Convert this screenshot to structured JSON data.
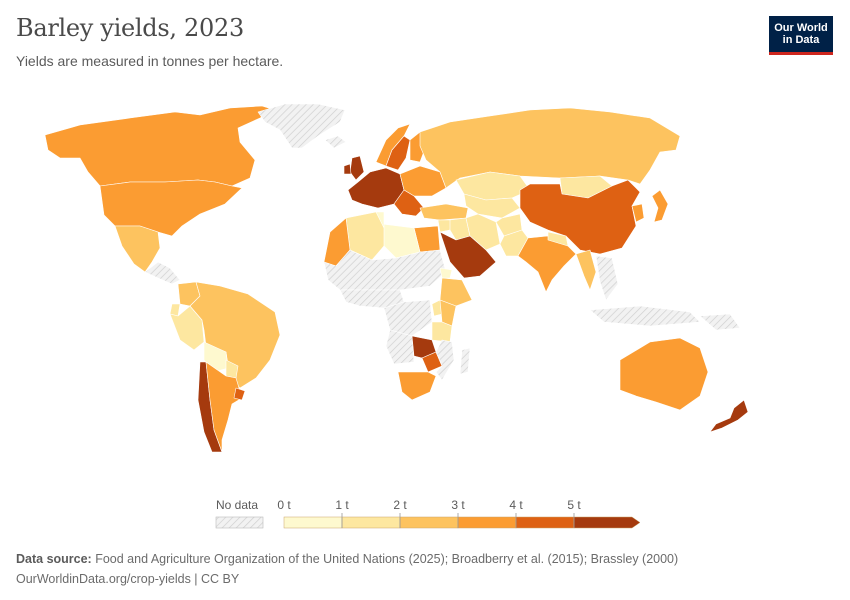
{
  "header": {
    "title": "Barley yields, 2023",
    "subtitle": "Yields are measured in tonnes per hectare."
  },
  "logo": {
    "line1": "Our World",
    "line2": "in Data"
  },
  "legend": {
    "no_data_label": "No data",
    "ticks": [
      "0 t",
      "1 t",
      "2 t",
      "3 t",
      "4 t",
      "5 t"
    ],
    "colors": [
      "#fef9cf",
      "#fde7a0",
      "#fdc35f",
      "#fb9c32",
      "#de6113",
      "#a53a0e"
    ],
    "no_data_color": "#e8e8e8"
  },
  "map": {
    "bins": [
      {
        "min": 0,
        "max": 1,
        "color": "#fef9cf"
      },
      {
        "min": 1,
        "max": 2,
        "color": "#fde7a0"
      },
      {
        "min": 2,
        "max": 3,
        "color": "#fdc35f"
      },
      {
        "min": 3,
        "max": 4,
        "color": "#fb9c32"
      },
      {
        "min": 4,
        "max": 5,
        "color": "#de6113"
      },
      {
        "min": 5,
        "max": 99,
        "color": "#a53a0e"
      }
    ],
    "regions": [
      {
        "name": "Canada",
        "value": 3.6
      },
      {
        "name": "United States",
        "value": 3.8
      },
      {
        "name": "Mexico",
        "value": 2.5
      },
      {
        "name": "Colombia",
        "value": 2.5
      },
      {
        "name": "Peru",
        "value": 1.5
      },
      {
        "name": "Ecuador",
        "value": 1.0
      },
      {
        "name": "Brazil",
        "value": 2.5
      },
      {
        "name": "Bolivia",
        "value": 0.8
      },
      {
        "name": "Paraguay",
        "value": 1.8
      },
      {
        "name": "Argentina",
        "value": 3.0
      },
      {
        "name": "Uruguay",
        "value": 4.2
      },
      {
        "name": "Chile",
        "value": 5.4
      },
      {
        "name": "Greenland",
        "value": null
      },
      {
        "name": "Iceland",
        "value": null
      },
      {
        "name": "United Kingdom",
        "value": 6.4
      },
      {
        "name": "Ireland",
        "value": 7.2
      },
      {
        "name": "Norway",
        "value": 3.5
      },
      {
        "name": "Sweden",
        "value": 4.0
      },
      {
        "name": "Finland",
        "value": 3.2
      },
      {
        "name": "Western Europe",
        "value": 6.8
      },
      {
        "name": "Eastern Europe",
        "value": 3.9
      },
      {
        "name": "Balkans",
        "value": 4.1
      },
      {
        "name": "Russia",
        "value": 2.4
      },
      {
        "name": "Kazakhstan",
        "value": 1.2
      },
      {
        "name": "Central Asia",
        "value": 1.6
      },
      {
        "name": "Mongolia",
        "value": 1.4
      },
      {
        "name": "China",
        "value": 4.4
      },
      {
        "name": "Korea",
        "value": 3.3
      },
      {
        "name": "Japan",
        "value": 3.4
      },
      {
        "name": "Turkey",
        "value": 2.6
      },
      {
        "name": "Iran",
        "value": 1.6
      },
      {
        "name": "Afghanistan",
        "value": 1.3
      },
      {
        "name": "Pakistan",
        "value": 1.5
      },
      {
        "name": "India",
        "value": 3.0
      },
      {
        "name": "Nepal",
        "value": 1.4
      },
      {
        "name": "Myanmar",
        "value": 2.2
      },
      {
        "name": "Saudi Arabia",
        "value": 5.5
      },
      {
        "name": "Iraq",
        "value": 1.2
      },
      {
        "name": "Syria",
        "value": 1.0
      },
      {
        "name": "Egypt",
        "value": 3.3
      },
      {
        "name": "Morocco",
        "value": 3.1
      },
      {
        "name": "Algeria",
        "value": 1.2
      },
      {
        "name": "Tunisia",
        "value": 0.9
      },
      {
        "name": "Libya",
        "value": 0.7
      },
      {
        "name": "Sahara",
        "value": null
      },
      {
        "name": "West Africa",
        "value": null
      },
      {
        "name": "Sudan",
        "value": null
      },
      {
        "name": "Ethiopia",
        "value": 2.3
      },
      {
        "name": "Eritrea",
        "value": 0.7
      },
      {
        "name": "Kenya",
        "value": 2.5
      },
      {
        "name": "Tanzania",
        "value": 1.6
      },
      {
        "name": "Congo",
        "value": null
      },
      {
        "name": "Uganda",
        "value": 1.5
      },
      {
        "name": "Angola",
        "value": null
      },
      {
        "name": "Zambia",
        "value": 5.6
      },
      {
        "name": "Zimbabwe",
        "value": 4.9
      },
      {
        "name": "Mozambique",
        "value": null
      },
      {
        "name": "South Africa",
        "value": 3.4
      },
      {
        "name": "Madagascar",
        "value": null
      },
      {
        "name": "Southeast Asia",
        "value": null
      },
      {
        "name": "Indonesia",
        "value": null
      },
      {
        "name": "Papua New Guinea",
        "value": null
      },
      {
        "name": "Australia",
        "value": 3.2
      },
      {
        "name": "New Zealand",
        "value": 5.6
      }
    ]
  },
  "footer": {
    "source_label": "Data source:",
    "source_text": "Food and Agriculture Organization of the United Nations (2025); Broadberry et al. (2015); Brassley (2000)",
    "url_license": "OurWorldinData.org/crop-yields | CC BY"
  }
}
